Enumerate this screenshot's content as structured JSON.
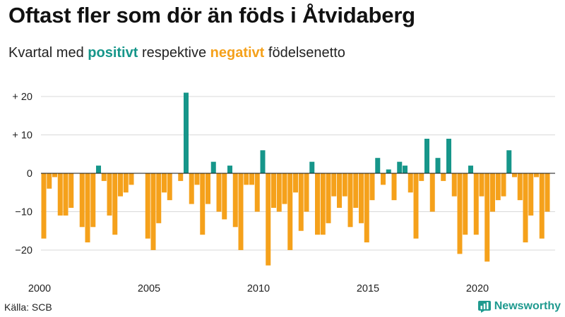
{
  "header": {
    "title": "Oftast fler som dör än föds i Åtvidaberg",
    "subtitle_prefix": "Kvartal med ",
    "subtitle_positive": "positivt",
    "subtitle_middle": " respektive ",
    "subtitle_negative": "negativt",
    "subtitle_suffix": " födelsenetto"
  },
  "footer": {
    "source": "Källa: SCB",
    "brand": "Newsworthy"
  },
  "colors": {
    "positive": "#16968a",
    "negative": "#f5a11b",
    "grid": "#d9d9d9",
    "zero_line": "#111111"
  },
  "chart_data": {
    "type": "bar",
    "title": "Oftast fler som dör än föds i Åtvidaberg",
    "subtitle": "Kvartal med positivt respektive negativt födelsenetto",
    "xlabel": "",
    "ylabel": "",
    "grid": true,
    "x_start": 2000,
    "quarters_per_year": 4,
    "ylim": [
      -25,
      24
    ],
    "yticks": [
      {
        "value": 20,
        "label": "+ 20"
      },
      {
        "value": 10,
        "label": "+ 10"
      },
      {
        "value": 0,
        "label": "0"
      },
      {
        "value": -10,
        "label": "−10"
      },
      {
        "value": -20,
        "label": "−20"
      }
    ],
    "xticks": [
      {
        "value": 2000,
        "label": "2000"
      },
      {
        "value": 2005,
        "label": "2005"
      },
      {
        "value": 2010,
        "label": "2010"
      },
      {
        "value": 2015,
        "label": "2015"
      },
      {
        "value": 2020,
        "label": "2020"
      }
    ],
    "values": [
      -17,
      -4,
      -1,
      -11,
      -11,
      -9,
      0,
      -14,
      -18,
      -14,
      2,
      -2,
      -11,
      -16,
      -6,
      -5,
      -3,
      0,
      0,
      -17,
      -20,
      -13,
      -5,
      -7,
      0,
      -2,
      21,
      -8,
      -3,
      -16,
      -8,
      3,
      -10,
      -12,
      2,
      -14,
      -20,
      -3,
      -3,
      -10,
      6,
      -24,
      -9,
      -10,
      -8,
      -20,
      -5,
      -15,
      -10,
      3,
      -16,
      -16,
      -13,
      -6,
      -9,
      -6,
      -14,
      -9,
      -13,
      -18,
      -7,
      4,
      -3,
      1,
      -7,
      3,
      2,
      -5,
      -17,
      -2,
      9,
      -10,
      4,
      -2,
      9,
      -6,
      -21,
      -16,
      2,
      -16,
      -6,
      -23,
      -10,
      -7,
      -6,
      6,
      -1,
      -7,
      -18,
      -11,
      -1,
      -17,
      -10
    ]
  }
}
